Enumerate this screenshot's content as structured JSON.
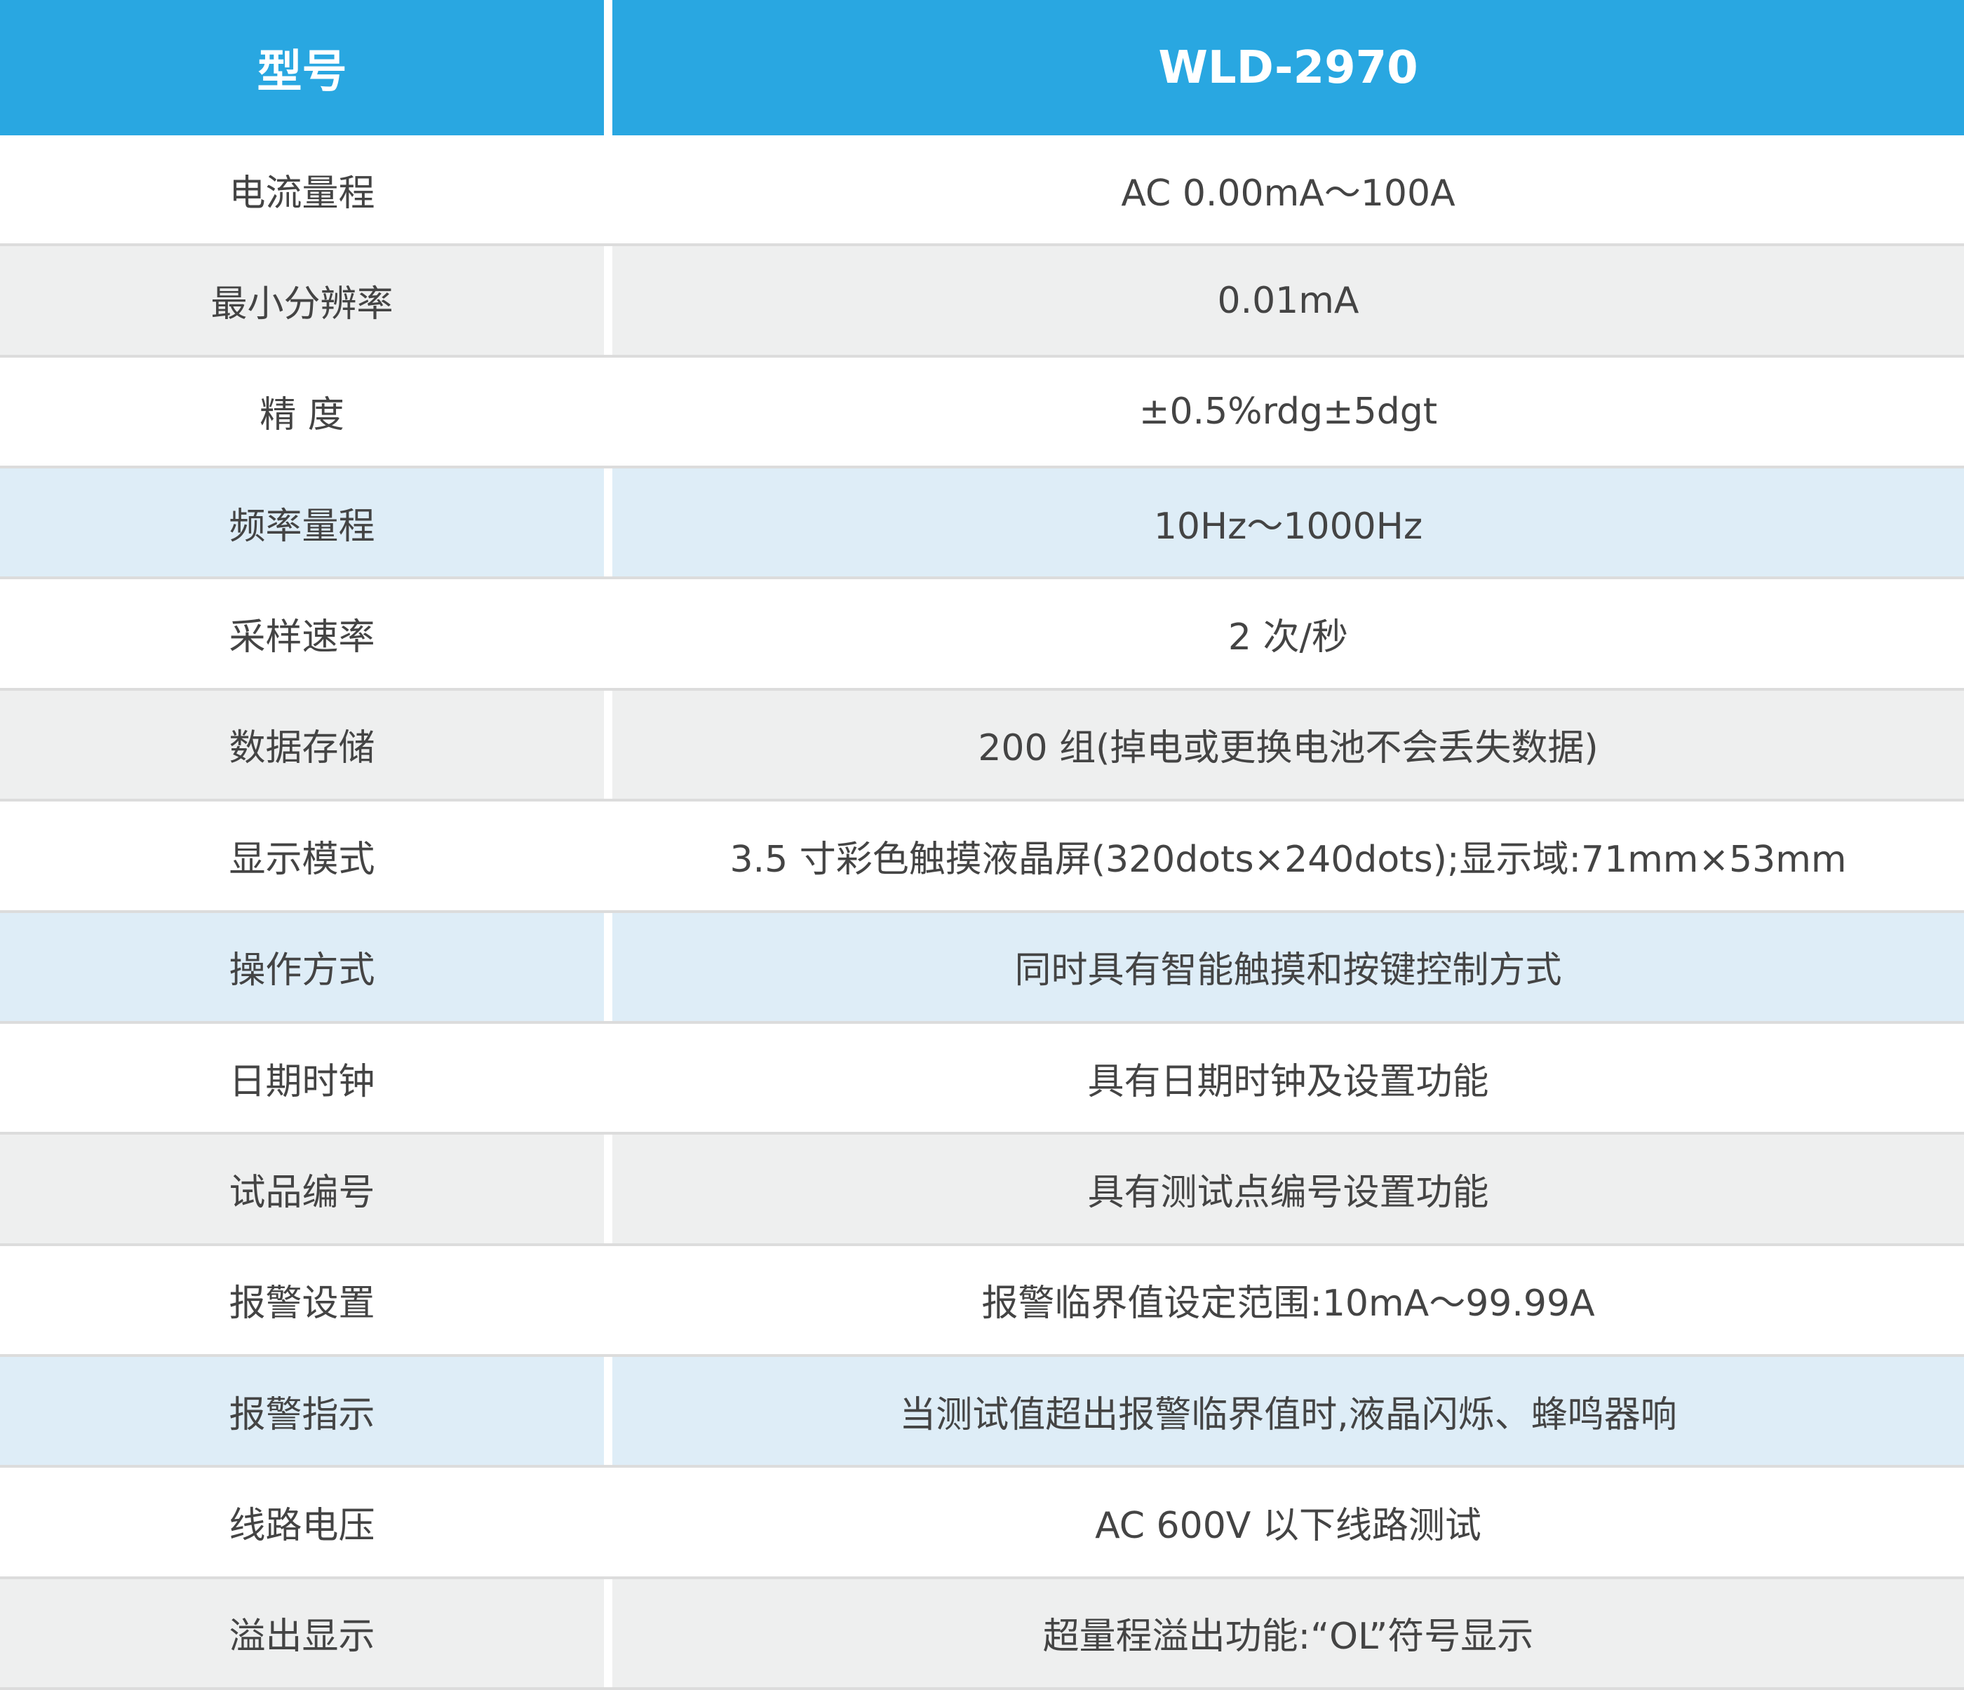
{
  "table": {
    "header": [
      "型号",
      "WLD-2970"
    ],
    "rows": [
      [
        "电流量程",
        "AC 0.00mA～100A"
      ],
      [
        "最小分辨率",
        "0.01mA"
      ],
      [
        "精 度",
        "±0.5%rdg±5dgt"
      ],
      [
        "频率量程",
        "10Hz～1000Hz"
      ],
      [
        "采样速率",
        "2 次/秒"
      ],
      [
        "数据存储",
        "200 组(掉电或更换电池不会丢失数据)"
      ],
      [
        "显示模式",
        "3.5 寸彩色触摸液晶屏(320dots×240dots);显示域:71mm×53mm"
      ],
      [
        "操作方式",
        "同时具有智能触摸和按键控制方式"
      ],
      [
        "日期时钟",
        "具有日期时钟及设置功能"
      ],
      [
        "试品编号",
        "具有测试点编号设置功能"
      ],
      [
        "报警设置",
        "报警临界值设定范围:10mA～99.99A"
      ],
      [
        "报警指示",
        "当测试值超出报警临界值时,液晶闪烁、蜂鸣器响"
      ],
      [
        "线路电压",
        "AC 600V 以下线路测试"
      ],
      [
        "溢出显示",
        "超量程溢出功能:“OL”符号显示"
      ]
    ]
  }
}
